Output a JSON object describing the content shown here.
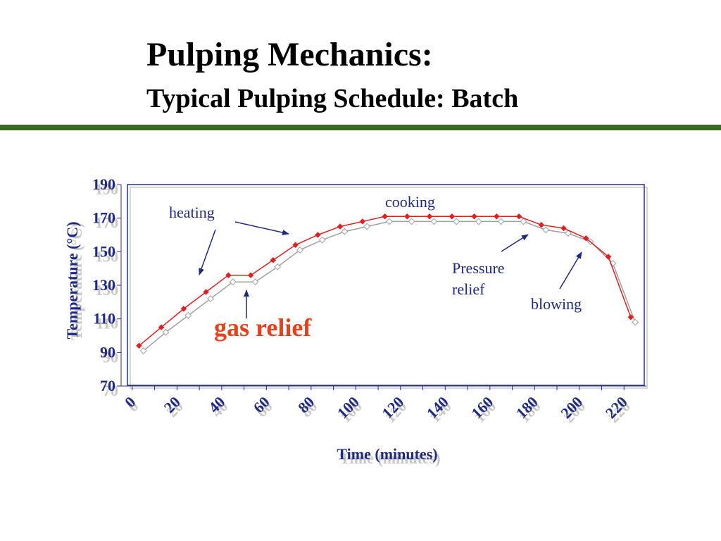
{
  "slide": {
    "title": "Pulping Mechanics:",
    "subtitle": "Typical Pulping Schedule: Batch",
    "accent_color": "#3b6b1e"
  },
  "chart_data": {
    "type": "line",
    "xlabel": "Time (minutes)",
    "ylabel": "Temperature (°C)",
    "xlim": [
      -5,
      230
    ],
    "ylim": [
      70,
      190
    ],
    "xticks": [
      0,
      20,
      40,
      60,
      80,
      100,
      120,
      140,
      160,
      180,
      200,
      220
    ],
    "yticks": [
      70,
      90,
      110,
      130,
      150,
      170,
      190
    ],
    "grid": false,
    "series": [
      {
        "color": "#e02020",
        "x": [
          3,
          13,
          23,
          33,
          43,
          53,
          63,
          73,
          83,
          93,
          103,
          113,
          123,
          133,
          143,
          153,
          163,
          173,
          183,
          193,
          203,
          213,
          223
        ],
        "y": [
          94,
          105,
          116,
          126,
          136,
          136,
          145,
          154,
          160,
          165,
          168,
          171,
          171,
          171,
          171,
          171,
          171,
          171,
          166,
          164,
          158,
          147,
          111
        ]
      },
      {
        "color": "#a0a0a0",
        "x": [
          5,
          15,
          25,
          35,
          45,
          55,
          65,
          75,
          85,
          95,
          105,
          115,
          125,
          135,
          145,
          155,
          165,
          175,
          185,
          195,
          205,
          215,
          225
        ],
        "y": [
          91,
          102,
          112,
          122,
          132,
          132,
          141,
          151,
          157,
          162,
          165,
          168,
          168,
          168,
          168,
          168,
          168,
          168,
          163,
          161,
          156,
          143,
          108
        ]
      }
    ],
    "annotations": {
      "heating": "heating",
      "cooking": "cooking",
      "pressure_relief_1": "Pressure",
      "pressure_relief_2": "relief",
      "blowing": "blowing",
      "gas_relief": "gas relief"
    },
    "colors": {
      "axis_text": "#1f2a80",
      "shadow_text": "#c8c8c8",
      "frame": "#2a2f8a",
      "gas_relief": "#e8401a"
    }
  }
}
